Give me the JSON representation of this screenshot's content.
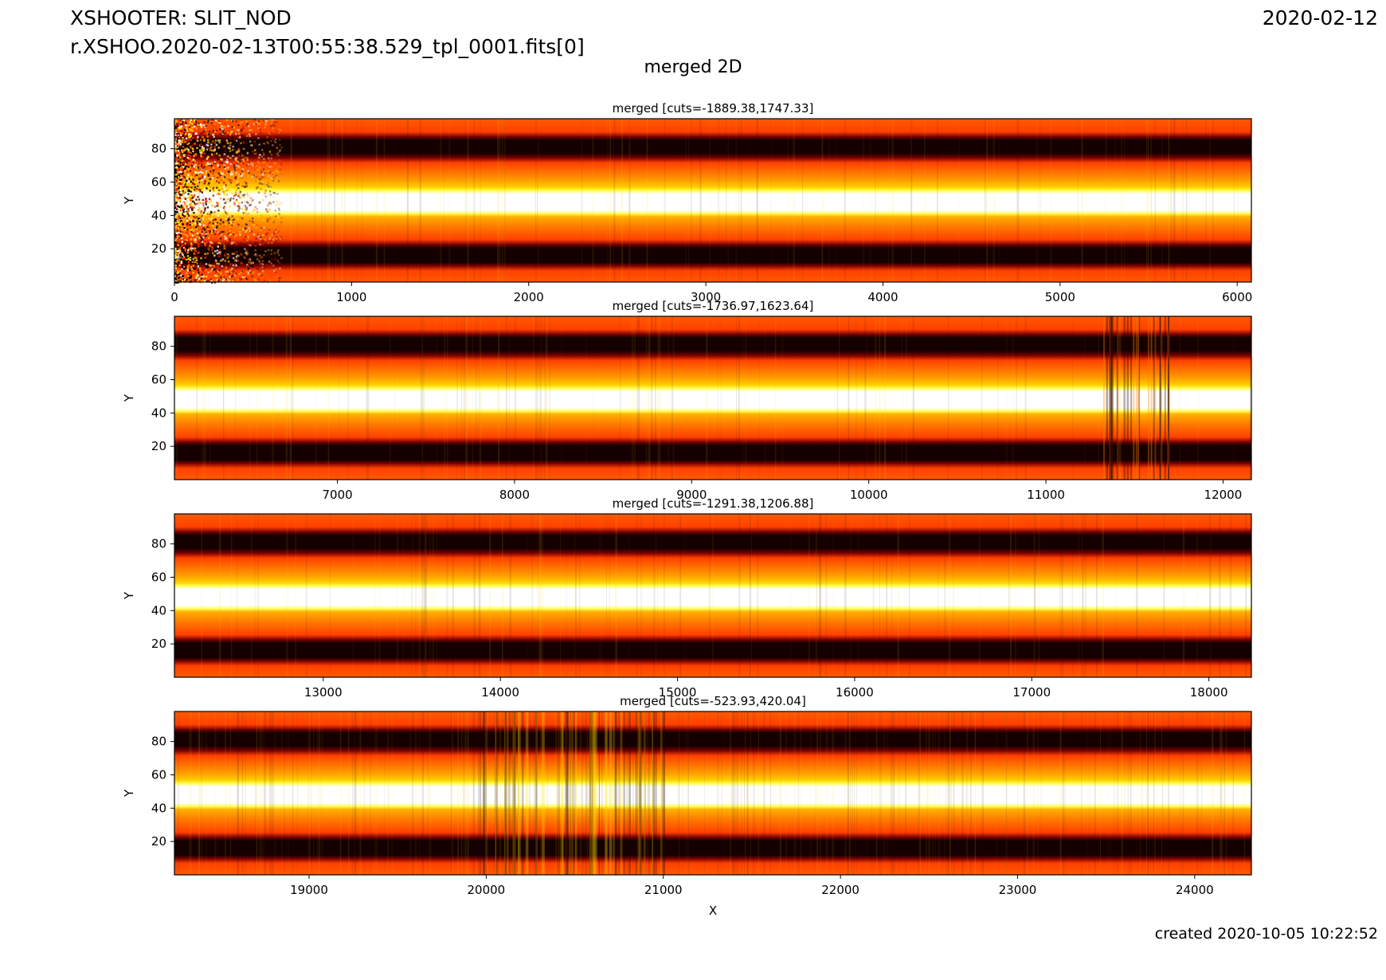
{
  "header": {
    "instrument": "XSHOOTER: SLIT_NOD",
    "filename": "r.XSHOO.2020-02-13T00:55:38.529_tpl_0001.fits[0]",
    "date": "2020-02-12",
    "suptitle": "merged 2D",
    "created": "created 2020-10-05 10:22:52"
  },
  "chart_data": [
    {
      "type": "heatmap",
      "title": "merged [cuts=-1889.38,1747.33]",
      "xlabel": "",
      "ylabel": "Y",
      "xlim": [
        0,
        6080
      ],
      "ylim": [
        0,
        98
      ],
      "xticks": [
        0,
        1000,
        2000,
        3000,
        4000,
        5000,
        6000
      ],
      "yticks": [
        20,
        40,
        60,
        80
      ],
      "colormap": "hot",
      "noisy_region_x": [
        0,
        600
      ]
    },
    {
      "type": "heatmap",
      "title": "merged [cuts=-1736.97,1623.64]",
      "xlabel": "",
      "ylabel": "Y",
      "xlim": [
        6080,
        12160
      ],
      "ylim": [
        0,
        98
      ],
      "xticks": [
        7000,
        8000,
        9000,
        10000,
        11000,
        12000
      ],
      "yticks": [
        20,
        40,
        60,
        80
      ],
      "colormap": "hot"
    },
    {
      "type": "heatmap",
      "title": "merged [cuts=-1291.38,1206.88]",
      "xlabel": "",
      "ylabel": "Y",
      "xlim": [
        12160,
        18240
      ],
      "ylim": [
        0,
        98
      ],
      "xticks": [
        13000,
        14000,
        15000,
        16000,
        17000,
        18000
      ],
      "yticks": [
        20,
        40,
        60,
        80
      ],
      "colormap": "hot"
    },
    {
      "type": "heatmap",
      "title": "merged [cuts=-523.93,420.04]",
      "xlabel": "X",
      "ylabel": "Y",
      "xlim": [
        18240,
        24320
      ],
      "ylim": [
        0,
        98
      ],
      "xticks": [
        19000,
        20000,
        21000,
        22000,
        23000,
        24000
      ],
      "yticks": [
        20,
        40,
        60,
        80
      ],
      "colormap": "hot"
    }
  ]
}
